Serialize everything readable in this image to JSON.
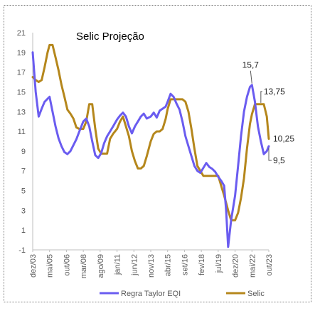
{
  "chart_data": {
    "type": "line",
    "title": "Selic  Projeção",
    "xlabel": "",
    "ylabel": "",
    "ylim": [
      -1,
      21
    ],
    "yticks": [
      -1,
      1,
      3,
      5,
      7,
      9,
      11,
      13,
      15,
      17,
      19,
      21
    ],
    "xlim": [
      "2003-12",
      "2023-10"
    ],
    "xticks": [
      {
        "label": "dez/03",
        "date": "2003-12"
      },
      {
        "label": "mai/05",
        "date": "2005-05"
      },
      {
        "label": "out/06",
        "date": "2006-10"
      },
      {
        "label": "mar/08",
        "date": "2008-03"
      },
      {
        "label": "ago/09",
        "date": "2009-08"
      },
      {
        "label": "jan/11",
        "date": "2011-01"
      },
      {
        "label": "jun/12",
        "date": "2012-06"
      },
      {
        "label": "nov/13",
        "date": "2013-11"
      },
      {
        "label": "abr/15",
        "date": "2015-04"
      },
      {
        "label": "set/16",
        "date": "2016-09"
      },
      {
        "label": "fev/18",
        "date": "2018-02"
      },
      {
        "label": "jul/19",
        "date": "2019-07"
      },
      {
        "label": "dez/20",
        "date": "2020-12"
      },
      {
        "label": "mai/22",
        "date": "2022-05"
      },
      {
        "label": "out/23",
        "date": "2023-10"
      }
    ],
    "grid": false,
    "legend": "bottom",
    "series": [
      {
        "name": "Regra Taylor EQI",
        "color": "#6a5cf0",
        "points": [
          [
            "2003-12",
            19.0
          ],
          [
            "2004-03",
            15.0
          ],
          [
            "2004-06",
            12.5
          ],
          [
            "2004-09",
            13.3
          ],
          [
            "2004-12",
            14.0
          ],
          [
            "2005-03",
            14.3
          ],
          [
            "2005-05",
            14.5
          ],
          [
            "2005-08",
            13.0
          ],
          [
            "2005-11",
            11.5
          ],
          [
            "2006-02",
            10.3
          ],
          [
            "2006-05",
            9.5
          ],
          [
            "2006-08",
            8.9
          ],
          [
            "2006-11",
            8.7
          ],
          [
            "2007-02",
            9.0
          ],
          [
            "2007-05",
            9.6
          ],
          [
            "2007-08",
            10.2
          ],
          [
            "2007-11",
            11.0
          ],
          [
            "2008-03",
            12.0
          ],
          [
            "2008-06",
            12.3
          ],
          [
            "2008-09",
            11.5
          ],
          [
            "2008-12",
            10.0
          ],
          [
            "2009-03",
            8.6
          ],
          [
            "2009-06",
            8.3
          ],
          [
            "2009-09",
            8.8
          ],
          [
            "2009-12",
            9.8
          ],
          [
            "2010-03",
            10.5
          ],
          [
            "2010-06",
            11.0
          ],
          [
            "2010-09",
            11.5
          ],
          [
            "2011-01",
            12.2
          ],
          [
            "2011-04",
            12.6
          ],
          [
            "2011-07",
            12.9
          ],
          [
            "2011-10",
            12.5
          ],
          [
            "2012-01",
            11.5
          ],
          [
            "2012-04",
            10.8
          ],
          [
            "2012-07",
            11.5
          ],
          [
            "2012-10",
            12.0
          ],
          [
            "2013-01",
            12.5
          ],
          [
            "2013-04",
            12.8
          ],
          [
            "2013-07",
            12.3
          ],
          [
            "2013-11",
            12.5
          ],
          [
            "2014-02",
            12.9
          ],
          [
            "2014-05",
            12.4
          ],
          [
            "2014-08",
            13.1
          ],
          [
            "2014-11",
            13.3
          ],
          [
            "2015-02",
            13.5
          ],
          [
            "2015-04",
            14.0
          ],
          [
            "2015-07",
            14.8
          ],
          [
            "2015-10",
            14.5
          ],
          [
            "2016-01",
            13.8
          ],
          [
            "2016-04",
            13.2
          ],
          [
            "2016-07",
            12.0
          ],
          [
            "2016-10",
            10.5
          ],
          [
            "2017-01",
            9.5
          ],
          [
            "2017-04",
            8.5
          ],
          [
            "2017-07",
            7.5
          ],
          [
            "2017-10",
            7.0
          ],
          [
            "2018-01",
            6.8
          ],
          [
            "2018-04",
            7.3
          ],
          [
            "2018-07",
            7.8
          ],
          [
            "2018-10",
            7.4
          ],
          [
            "2019-01",
            7.2
          ],
          [
            "2019-04",
            6.9
          ],
          [
            "2019-07",
            6.4
          ],
          [
            "2019-10",
            6.0
          ],
          [
            "2020-01",
            5.5
          ],
          [
            "2020-03",
            3.0
          ],
          [
            "2020-05",
            -0.7
          ],
          [
            "2020-08",
            2.0
          ],
          [
            "2020-12",
            4.5
          ],
          [
            "2021-03",
            7.5
          ],
          [
            "2021-06",
            10.5
          ],
          [
            "2021-09",
            13.0
          ],
          [
            "2021-12",
            14.5
          ],
          [
            "2022-03",
            15.5
          ],
          [
            "2022-05",
            15.7
          ],
          [
            "2022-08",
            14.0
          ],
          [
            "2022-11",
            11.5
          ],
          [
            "2023-02",
            10.0
          ],
          [
            "2023-05",
            8.7
          ],
          [
            "2023-08",
            9.0
          ],
          [
            "2023-10",
            9.5
          ]
        ]
      },
      {
        "name": "Selic",
        "color": "#b5871c",
        "points": [
          [
            "2003-12",
            16.5
          ],
          [
            "2004-03",
            16.2
          ],
          [
            "2004-06",
            16.0
          ],
          [
            "2004-09",
            16.2
          ],
          [
            "2004-12",
            17.5
          ],
          [
            "2005-03",
            19.0
          ],
          [
            "2005-05",
            19.75
          ],
          [
            "2005-08",
            19.75
          ],
          [
            "2005-11",
            18.5
          ],
          [
            "2006-02",
            17.2
          ],
          [
            "2006-05",
            15.7
          ],
          [
            "2006-08",
            14.5
          ],
          [
            "2006-11",
            13.2
          ],
          [
            "2007-02",
            12.8
          ],
          [
            "2007-05",
            12.3
          ],
          [
            "2007-08",
            11.4
          ],
          [
            "2007-11",
            11.25
          ],
          [
            "2008-03",
            11.25
          ],
          [
            "2008-06",
            12.0
          ],
          [
            "2008-09",
            13.75
          ],
          [
            "2008-12",
            13.75
          ],
          [
            "2009-03",
            11.3
          ],
          [
            "2009-06",
            9.25
          ],
          [
            "2009-09",
            8.75
          ],
          [
            "2009-12",
            8.75
          ],
          [
            "2010-03",
            8.75
          ],
          [
            "2010-06",
            10.25
          ],
          [
            "2010-09",
            10.75
          ],
          [
            "2011-01",
            11.25
          ],
          [
            "2011-04",
            12.0
          ],
          [
            "2011-07",
            12.5
          ],
          [
            "2011-10",
            11.5
          ],
          [
            "2012-01",
            10.5
          ],
          [
            "2012-04",
            9.0
          ],
          [
            "2012-07",
            8.0
          ],
          [
            "2012-10",
            7.25
          ],
          [
            "2013-01",
            7.25
          ],
          [
            "2013-04",
            7.5
          ],
          [
            "2013-07",
            8.5
          ],
          [
            "2013-11",
            10.0
          ],
          [
            "2014-02",
            10.75
          ],
          [
            "2014-05",
            11.0
          ],
          [
            "2014-08",
            11.0
          ],
          [
            "2014-11",
            11.25
          ],
          [
            "2015-02",
            12.25
          ],
          [
            "2015-04",
            13.25
          ],
          [
            "2015-07",
            14.25
          ],
          [
            "2015-10",
            14.25
          ],
          [
            "2016-01",
            14.25
          ],
          [
            "2016-04",
            14.25
          ],
          [
            "2016-07",
            14.25
          ],
          [
            "2016-10",
            14.0
          ],
          [
            "2017-01",
            13.0
          ],
          [
            "2017-04",
            11.25
          ],
          [
            "2017-07",
            9.25
          ],
          [
            "2017-10",
            7.5
          ],
          [
            "2018-01",
            7.0
          ],
          [
            "2018-04",
            6.5
          ],
          [
            "2018-07",
            6.5
          ],
          [
            "2018-10",
            6.5
          ],
          [
            "2019-01",
            6.5
          ],
          [
            "2019-04",
            6.5
          ],
          [
            "2019-07",
            6.5
          ],
          [
            "2019-10",
            5.5
          ],
          [
            "2020-01",
            4.5
          ],
          [
            "2020-03",
            3.75
          ],
          [
            "2020-05",
            3.0
          ],
          [
            "2020-08",
            2.0
          ],
          [
            "2020-12",
            2.0
          ],
          [
            "2021-03",
            2.75
          ],
          [
            "2021-06",
            4.25
          ],
          [
            "2021-09",
            6.25
          ],
          [
            "2021-12",
            9.25
          ],
          [
            "2022-03",
            11.75
          ],
          [
            "2022-05",
            12.75
          ],
          [
            "2022-08",
            13.75
          ],
          [
            "2022-11",
            13.75
          ],
          [
            "2023-02",
            13.75
          ],
          [
            "2023-05",
            13.75
          ],
          [
            "2023-08",
            12.5
          ],
          [
            "2023-10",
            10.25
          ]
        ]
      }
    ],
    "annotations": [
      {
        "text": "15,7",
        "x": "2022-05",
        "y": 15.7,
        "series": "Regra Taylor EQI"
      },
      {
        "text": "13,75",
        "x": "2023-02",
        "y": 13.75,
        "series": "Selic"
      },
      {
        "text": "10,25",
        "x": "2023-10",
        "y": 10.25,
        "series": "Selic"
      },
      {
        "text": "9,5",
        "x": "2023-10",
        "y": 9.5,
        "series": "Regra Taylor EQI"
      }
    ]
  }
}
